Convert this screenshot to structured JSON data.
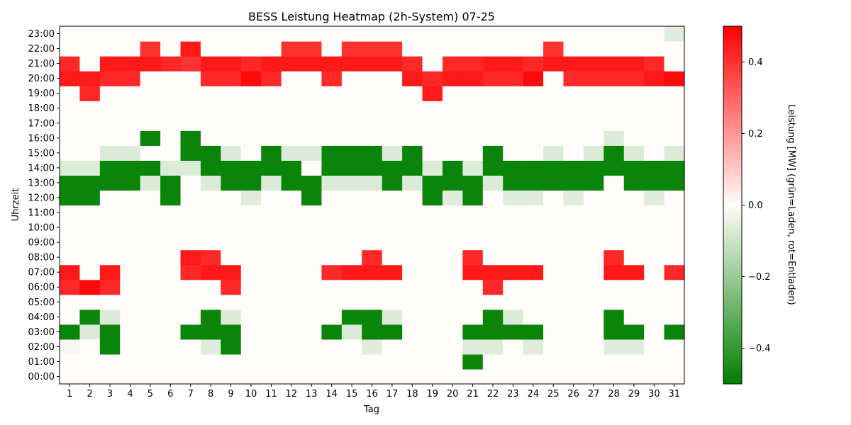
{
  "chart_data": {
    "type": "heatmap",
    "title": "BESS Leistung Heatmap (2h-System) 07-25",
    "xlabel": "Tag",
    "ylabel": "Uhrzeit",
    "colorbar_label": "Leistung [MW] (grün=Laden, rot=Entladen)",
    "colorbar_ticks": [
      "−0.4",
      "−0.2",
      "0.0",
      "0.2",
      "0.4"
    ],
    "colorbar_tick_values": [
      -0.4,
      -0.2,
      0.0,
      0.2,
      0.4
    ],
    "vlim": [
      -0.5,
      0.5
    ],
    "colors": {
      "negative": "#008000",
      "zero": "#fffcfa",
      "positive": "#ff0000"
    },
    "x": [
      "1",
      "2",
      "3",
      "4",
      "5",
      "6",
      "7",
      "8",
      "9",
      "10",
      "11",
      "12",
      "13",
      "14",
      "15",
      "16",
      "17",
      "18",
      "19",
      "20",
      "21",
      "22",
      "23",
      "24",
      "25",
      "26",
      "27",
      "28",
      "29",
      "30",
      "31"
    ],
    "y": [
      "00:00",
      "01:00",
      "02:00",
      "03:00",
      "04:00",
      "05:00",
      "06:00",
      "07:00",
      "08:00",
      "09:00",
      "10:00",
      "11:00",
      "12:00",
      "13:00",
      "14:00",
      "15:00",
      "16:00",
      "17:00",
      "18:00",
      "19:00",
      "20:00",
      "21:00",
      "22:00",
      "23:00"
    ],
    "values": [
      [
        0,
        0,
        0,
        0,
        0,
        0,
        0,
        0,
        0,
        0,
        0,
        0,
        0,
        0,
        0,
        0,
        0,
        0,
        0,
        0,
        0,
        0,
        0,
        0,
        0,
        0,
        0,
        0,
        0,
        0,
        0
      ],
      [
        0,
        0,
        0,
        0,
        0,
        0,
        0,
        0,
        0,
        0,
        0,
        0,
        0,
        0,
        0,
        0,
        0,
        0,
        0,
        0,
        -0.48,
        0,
        0,
        0,
        0,
        0,
        0,
        0,
        0,
        0,
        0
      ],
      [
        -0.02,
        0,
        -0.48,
        0,
        0,
        0,
        0,
        -0.06,
        -0.48,
        0,
        0,
        0,
        0,
        0,
        0,
        -0.06,
        0,
        0,
        0,
        0,
        -0.06,
        -0.06,
        0,
        -0.06,
        0,
        0,
        0,
        -0.06,
        -0.06,
        0,
        0
      ],
      [
        -0.48,
        -0.07,
        -0.48,
        0,
        0,
        0,
        -0.48,
        -0.48,
        -0.48,
        0,
        0,
        0,
        0,
        -0.48,
        -0.07,
        -0.48,
        -0.48,
        0,
        0,
        0,
        -0.48,
        -0.48,
        -0.48,
        -0.48,
        0,
        0,
        0,
        -0.48,
        -0.48,
        0,
        -0.48
      ],
      [
        0,
        -0.48,
        -0.07,
        0,
        0,
        0,
        0,
        -0.48,
        -0.07,
        0,
        0,
        0,
        0,
        0,
        -0.48,
        -0.48,
        -0.07,
        0,
        0,
        0,
        0,
        -0.48,
        -0.07,
        0,
        0,
        0,
        0,
        -0.48,
        0,
        0,
        0
      ],
      [
        0,
        0,
        0,
        0,
        0,
        0,
        0,
        0,
        0,
        0,
        0,
        0,
        0,
        0,
        0,
        0,
        0,
        0,
        0,
        0,
        0,
        0,
        0,
        0,
        0,
        0,
        0,
        0,
        0,
        0,
        0
      ],
      [
        0.42,
        0.48,
        0.42,
        0,
        0,
        0,
        0,
        0,
        0.42,
        0,
        0,
        0,
        0,
        0,
        0,
        0,
        0,
        0,
        0,
        0,
        0,
        0.42,
        0,
        0,
        0,
        0,
        0,
        0,
        0,
        0,
        0
      ],
      [
        0.45,
        0,
        0.45,
        0,
        0,
        0,
        0.42,
        0.45,
        0.45,
        0,
        0,
        0,
        0,
        0.42,
        0.45,
        0.45,
        0.45,
        0,
        0,
        0,
        0.45,
        0.45,
        0.45,
        0.45,
        0,
        0,
        0,
        0.45,
        0.45,
        0,
        0.42
      ],
      [
        0,
        0,
        0,
        0,
        0,
        0,
        0.45,
        0.42,
        0,
        0,
        0,
        0,
        0,
        0,
        0,
        0.42,
        0,
        0,
        0,
        0,
        0.42,
        0,
        0,
        0,
        0,
        0,
        0,
        0.42,
        0,
        0,
        0
      ],
      [
        0,
        0,
        0,
        0,
        0,
        0,
        0,
        0,
        0,
        0,
        0,
        0,
        0,
        0,
        0,
        0,
        0,
        0,
        0,
        0,
        0,
        0,
        0,
        0,
        0,
        0,
        0,
        0,
        0,
        0,
        0
      ],
      [
        0,
        0,
        0,
        0,
        0,
        0,
        0,
        0,
        0,
        0,
        0,
        0,
        0,
        0,
        0,
        0,
        0,
        0,
        0,
        0,
        0,
        0,
        0,
        0,
        0,
        0,
        0,
        0,
        0,
        0,
        0
      ],
      [
        0,
        0,
        0,
        0,
        0,
        0,
        0,
        0,
        0,
        0,
        0,
        0,
        0,
        0,
        0,
        0,
        0,
        0,
        0,
        0,
        0,
        0,
        0,
        0,
        0,
        0,
        0,
        0,
        0,
        0,
        0
      ],
      [
        -0.48,
        -0.48,
        0,
        0,
        0,
        -0.48,
        0,
        0,
        0,
        -0.06,
        0,
        0,
        -0.48,
        0,
        0,
        0,
        0,
        0,
        -0.48,
        -0.06,
        -0.48,
        0,
        -0.06,
        -0.06,
        0,
        -0.06,
        0,
        0,
        0,
        -0.06,
        0
      ],
      [
        -0.48,
        -0.48,
        -0.48,
        -0.48,
        -0.07,
        -0.48,
        0,
        -0.07,
        -0.48,
        -0.48,
        -0.07,
        -0.48,
        -0.48,
        -0.07,
        -0.07,
        -0.07,
        -0.48,
        -0.07,
        -0.48,
        -0.48,
        -0.48,
        -0.07,
        -0.48,
        -0.48,
        -0.48,
        -0.48,
        -0.48,
        0,
        -0.48,
        -0.48,
        -0.48
      ],
      [
        -0.07,
        -0.07,
        -0.48,
        -0.48,
        -0.48,
        -0.07,
        -0.07,
        -0.48,
        -0.48,
        -0.48,
        -0.48,
        -0.48,
        0,
        -0.48,
        -0.48,
        -0.48,
        -0.48,
        -0.48,
        -0.07,
        -0.48,
        -0.07,
        -0.48,
        -0.48,
        -0.48,
        -0.48,
        -0.48,
        -0.48,
        -0.48,
        -0.48,
        -0.48,
        -0.48
      ],
      [
        0,
        0,
        -0.07,
        -0.07,
        0,
        0,
        -0.48,
        -0.48,
        -0.07,
        0,
        -0.48,
        -0.07,
        -0.07,
        -0.48,
        -0.48,
        -0.48,
        -0.07,
        -0.48,
        0,
        0,
        0,
        -0.48,
        0,
        0,
        -0.07,
        0,
        -0.07,
        -0.48,
        -0.07,
        0,
        -0.07
      ],
      [
        0,
        0,
        0,
        0,
        -0.48,
        0,
        -0.48,
        0,
        0,
        0,
        0,
        0,
        0,
        0,
        0,
        0,
        0,
        0,
        0,
        0,
        0,
        0,
        0,
        0,
        0,
        0,
        0,
        -0.07,
        0,
        0,
        0
      ],
      [
        0,
        0,
        0,
        0,
        0,
        0,
        0,
        0,
        0,
        0,
        0,
        0,
        0,
        0,
        0,
        0,
        0,
        0,
        0,
        0,
        0,
        0,
        0,
        0,
        0,
        0,
        0,
        0,
        0,
        0,
        0
      ],
      [
        0,
        0,
        0,
        0,
        0,
        0,
        0,
        0,
        0,
        0,
        0,
        0,
        0,
        0,
        0,
        0,
        0,
        0,
        0,
        0,
        0,
        0,
        0,
        0,
        0,
        0,
        0,
        0,
        0,
        0,
        0
      ],
      [
        0,
        0.42,
        0,
        0,
        0,
        0,
        0,
        0,
        0,
        0,
        0,
        0,
        0,
        0,
        0,
        0,
        0,
        0,
        0.45,
        0,
        0,
        0,
        0,
        0,
        0,
        0,
        0,
        0,
        0,
        0,
        0
      ],
      [
        0.45,
        0.45,
        0.42,
        0.42,
        0,
        0,
        0,
        0.42,
        0.42,
        0.48,
        0.42,
        0,
        0,
        0.42,
        0,
        0,
        0,
        0.45,
        0.42,
        0.45,
        0.45,
        0.42,
        0.42,
        0.48,
        0,
        0.42,
        0.42,
        0.42,
        0.42,
        0.45,
        0.48
      ],
      [
        0.42,
        0,
        0.45,
        0.45,
        0.45,
        0.42,
        0.4,
        0.45,
        0.45,
        0.42,
        0.45,
        0.45,
        0.45,
        0.45,
        0.45,
        0.45,
        0.45,
        0.42,
        0,
        0.42,
        0.42,
        0.45,
        0.45,
        0.42,
        0.45,
        0.45,
        0.45,
        0.45,
        0.45,
        0.42,
        0
      ],
      [
        0,
        0,
        0,
        0,
        0.4,
        0,
        0.45,
        0,
        0,
        0,
        0,
        0.4,
        0.4,
        0,
        0.4,
        0.4,
        0.4,
        0,
        0,
        0,
        0,
        0,
        0,
        0,
        0.4,
        0,
        0,
        0,
        0,
        0,
        0
      ],
      [
        0,
        0,
        0,
        0,
        0,
        0,
        0,
        0,
        0,
        0,
        0,
        0,
        0,
        0,
        0,
        0,
        0,
        0,
        0,
        0,
        0,
        0,
        0,
        0,
        0,
        0,
        0,
        0,
        0,
        0,
        -0.06
      ]
    ]
  }
}
